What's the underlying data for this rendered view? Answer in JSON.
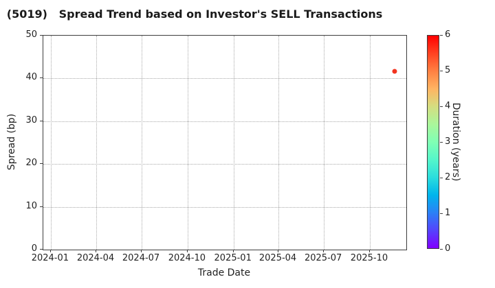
{
  "figure": {
    "background": "#ffffff",
    "text_color": "#1f1f1f",
    "grid_color": "#a8a8a8",
    "spine_color": "#3c3c3c"
  },
  "chart_data": {
    "type": "scatter",
    "title": "(5019)   Spread Trend based on Investor's SELL Transactions",
    "xlabel": "Trade Date",
    "ylabel": "Spread (bp)",
    "grid": "dotted",
    "x_axis": {
      "type": "date",
      "min": "2023-12-17",
      "max": "2025-12-13",
      "tick_dates": [
        "2024-01-01",
        "2024-04-01",
        "2024-07-01",
        "2024-10-01",
        "2025-01-01",
        "2025-04-01",
        "2025-07-01",
        "2025-10-01"
      ],
      "tick_labels": [
        "2024-01",
        "2024-04",
        "2024-07",
        "2024-10",
        "2025-01",
        "2025-04",
        "2025-07",
        "2025-10"
      ]
    },
    "y_axis": {
      "min": 0,
      "max": 50,
      "ticks": [
        0,
        10,
        20,
        30,
        40,
        50
      ]
    },
    "points": [
      {
        "date": "2025-11-20",
        "spread_bp": 41.7,
        "duration_years": 5.8,
        "color": "#f23420"
      }
    ],
    "colorbar": {
      "label": "Duration (years)",
      "min": 0,
      "max": 6,
      "ticks": [
        0,
        1,
        2,
        3,
        4,
        5,
        6
      ],
      "colormap": "rainbow",
      "gradient_stops": [
        {
          "pos": 0.0,
          "color": "#8000ff"
        },
        {
          "pos": 0.083,
          "color": "#5542fd"
        },
        {
          "pos": 0.167,
          "color": "#2b80f6"
        },
        {
          "pos": 0.25,
          "color": "#00b4ec"
        },
        {
          "pos": 0.333,
          "color": "#2bdddd"
        },
        {
          "pos": 0.417,
          "color": "#55f6ca"
        },
        {
          "pos": 0.5,
          "color": "#80ffb4"
        },
        {
          "pos": 0.583,
          "color": "#aaf69b"
        },
        {
          "pos": 0.667,
          "color": "#d5dd80"
        },
        {
          "pos": 0.75,
          "color": "#ffb462"
        },
        {
          "pos": 0.833,
          "color": "#ff8042"
        },
        {
          "pos": 0.917,
          "color": "#ff4221"
        },
        {
          "pos": 1.0,
          "color": "#ff0000"
        }
      ]
    }
  }
}
